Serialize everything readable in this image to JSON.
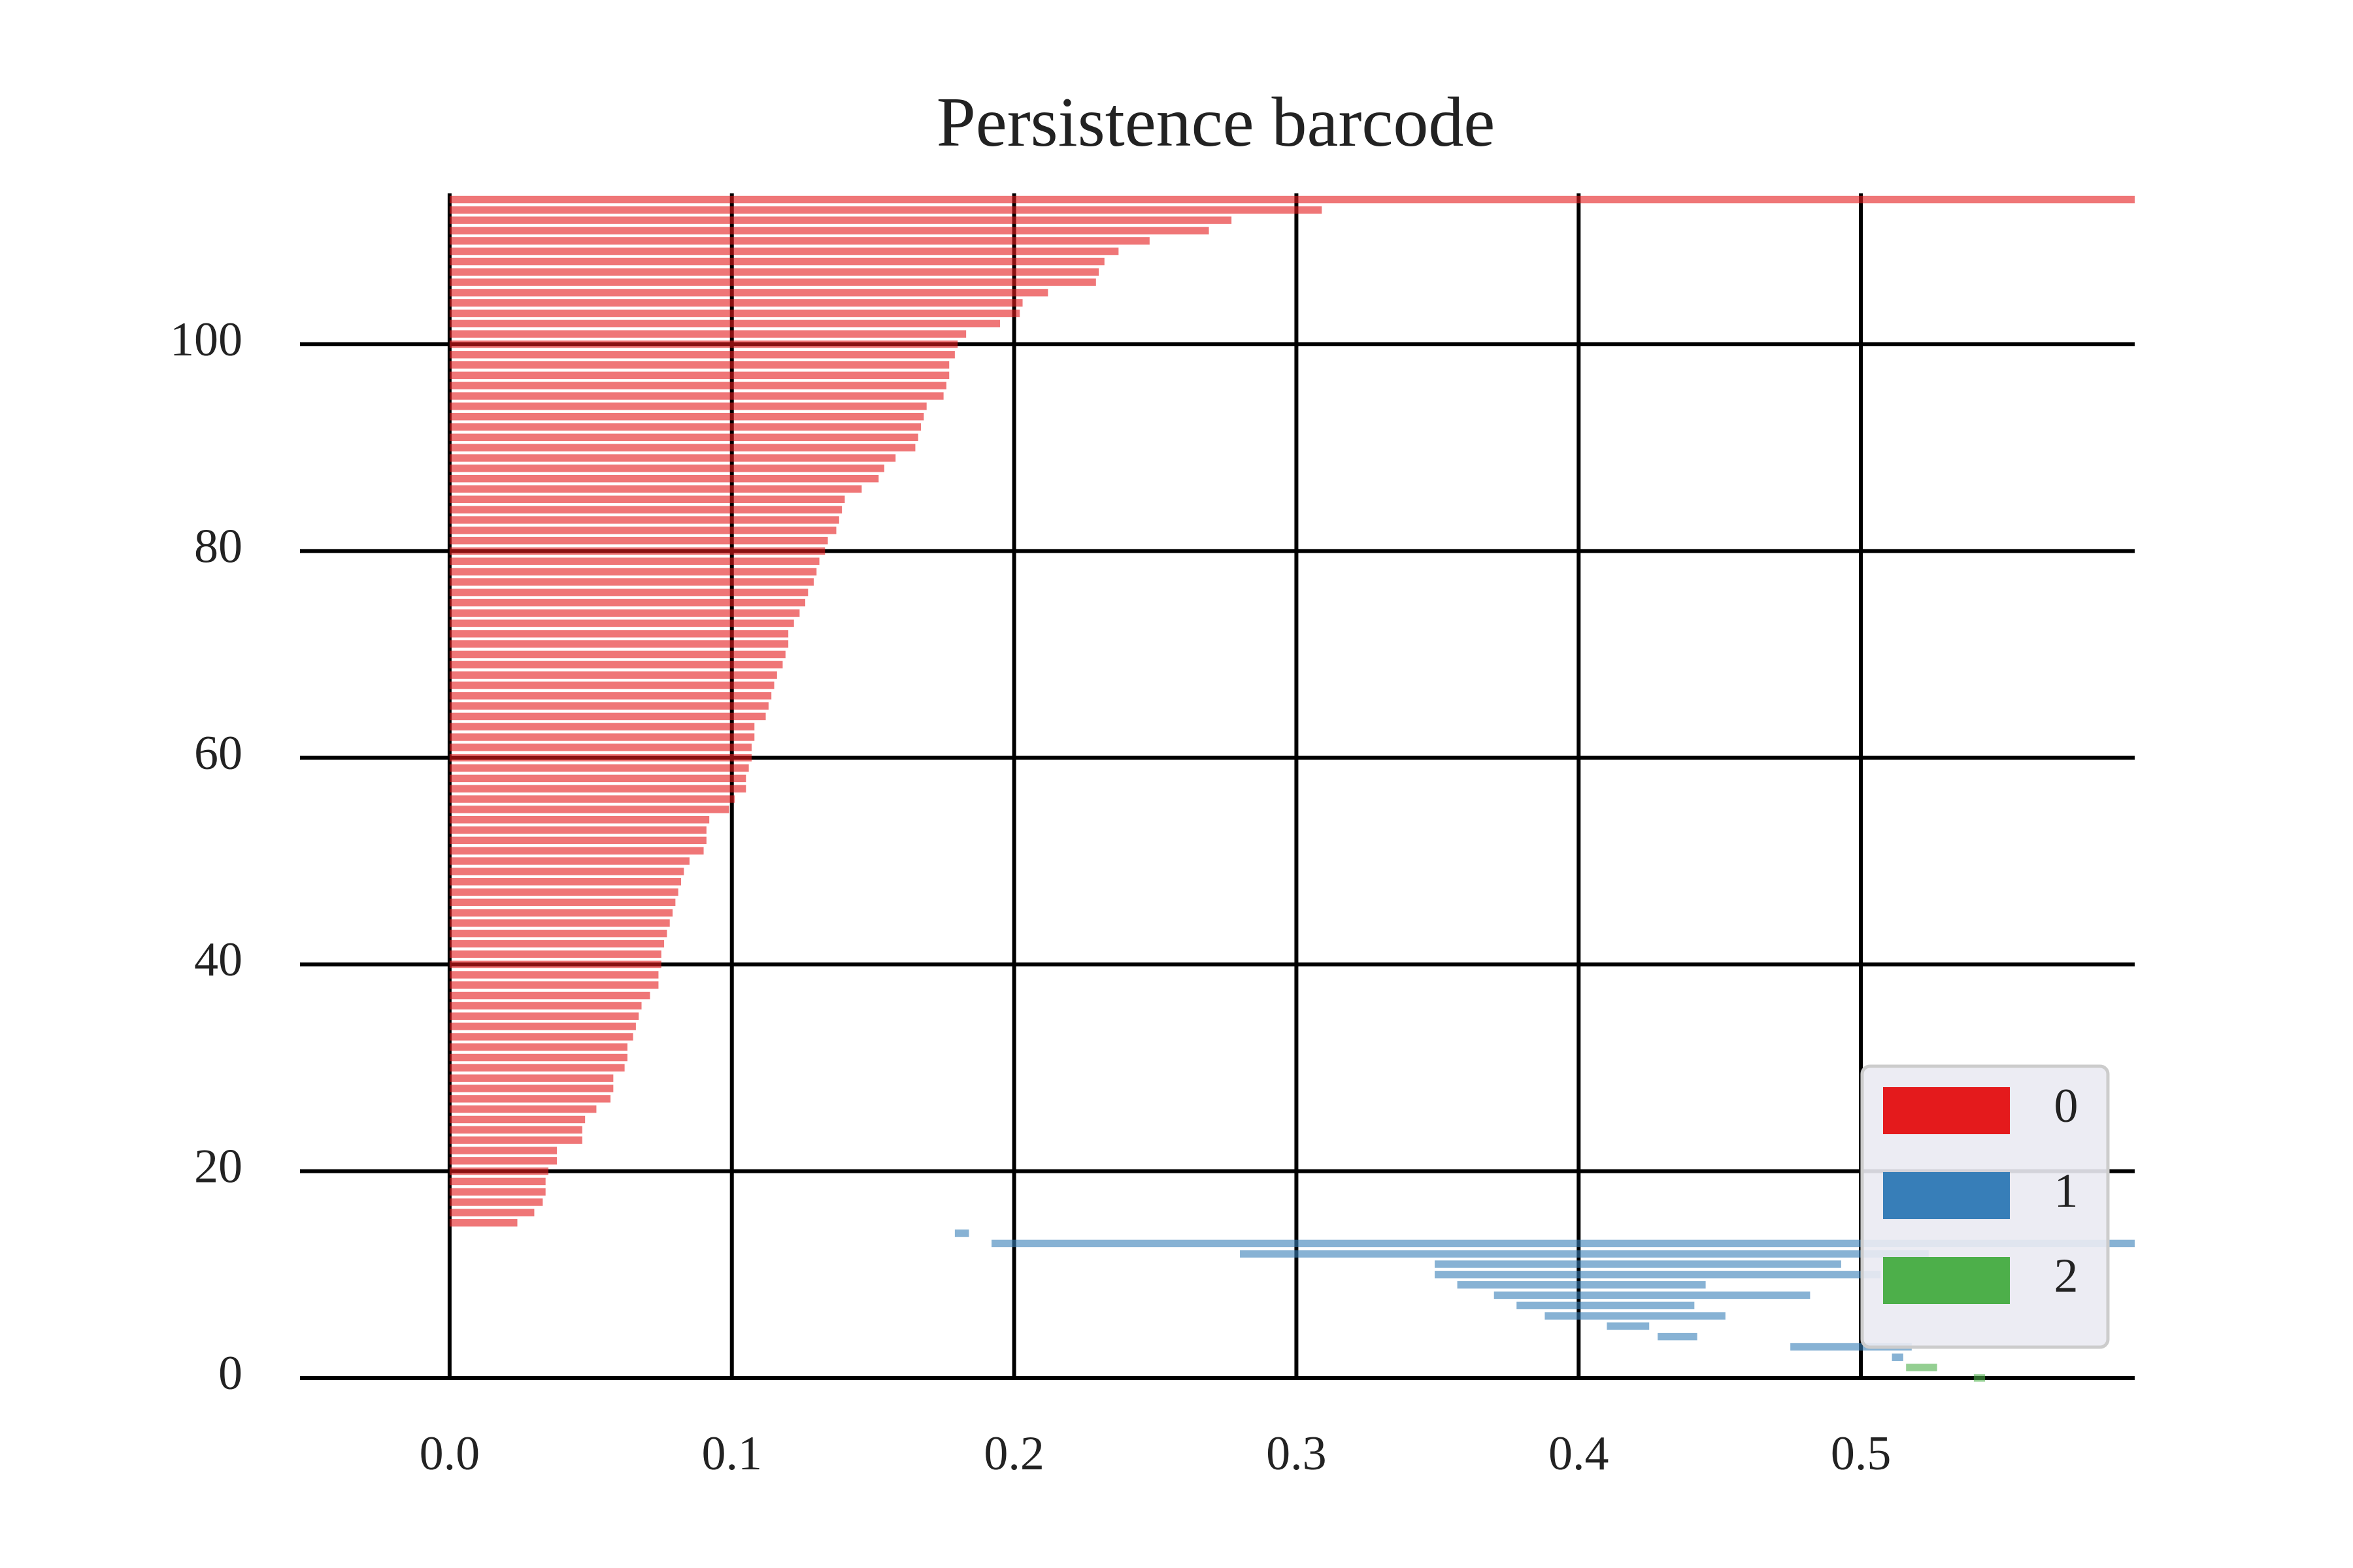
{
  "chart_data": {
    "type": "barcode",
    "title": "Persistence barcode",
    "xlim": [
      -0.053,
      0.597
    ],
    "ylim": [
      0,
      114.6
    ],
    "xticks": [
      {
        "value": 0,
        "label": "0.0"
      },
      0.1,
      0.2,
      0.3,
      0.4,
      0.5
    ],
    "yticks": [
      0,
      20,
      40,
      60,
      80,
      100
    ],
    "grid": true,
    "legend": "lower right",
    "series": [
      {
        "name": "0",
        "color": "#e41a1c",
        "y": [
          114,
          113,
          112,
          111,
          110,
          109,
          108,
          107,
          106,
          105,
          104,
          103,
          102,
          101,
          100,
          99,
          98,
          97,
          96,
          95,
          94,
          93,
          92,
          91,
          90,
          89,
          88,
          87,
          86,
          85,
          84,
          83,
          82,
          81,
          80,
          79,
          78,
          77,
          76,
          75,
          74,
          73,
          72,
          71,
          70,
          69,
          68,
          67,
          66,
          65,
          64,
          63,
          62,
          61,
          60,
          59,
          58,
          57,
          56,
          55,
          54,
          53,
          52,
          51,
          50,
          49,
          48,
          47,
          46,
          45,
          44,
          43,
          42,
          41,
          40,
          39,
          38,
          37,
          36,
          35,
          34,
          33,
          32,
          31,
          30,
          29,
          28,
          27,
          26,
          25,
          24,
          23,
          22,
          21,
          20,
          19,
          18,
          17,
          16,
          15
        ],
        "births": [
          0,
          0,
          0,
          0,
          0,
          0,
          0,
          0,
          0,
          0,
          0,
          0,
          0,
          0,
          0,
          0,
          0,
          0,
          0,
          0,
          0,
          0,
          0,
          0,
          0,
          0,
          0,
          0,
          0,
          0,
          0,
          0,
          0,
          0,
          0,
          0,
          0,
          0,
          0,
          0,
          0,
          0,
          0,
          0,
          0,
          0,
          0,
          0,
          0,
          0,
          0,
          0,
          0,
          0,
          0,
          0,
          0,
          0,
          0,
          0,
          0,
          0,
          0,
          0,
          0,
          0,
          0,
          0,
          0,
          0,
          0,
          0,
          0,
          0,
          0,
          0,
          0,
          0,
          0,
          0,
          0,
          0,
          0,
          0,
          0,
          0,
          0,
          0,
          0,
          0,
          0,
          0,
          0,
          0,
          0,
          0,
          0,
          0,
          0,
          0
        ],
        "deaths": [
          null,
          0.309,
          0.277,
          0.269,
          0.248,
          0.237,
          0.232,
          0.23,
          0.229,
          0.212,
          0.203,
          0.202,
          0.195,
          0.183,
          0.18,
          0.179,
          0.177,
          0.177,
          0.176,
          0.175,
          0.169,
          0.168,
          0.167,
          0.166,
          0.165,
          0.158,
          0.154,
          0.152,
          0.146,
          0.14,
          0.139,
          0.138,
          0.137,
          0.134,
          0.133,
          0.131,
          0.13,
          0.129,
          0.127,
          0.126,
          0.124,
          0.122,
          0.12,
          0.12,
          0.119,
          0.118,
          0.116,
          0.115,
          0.114,
          0.113,
          0.112,
          0.108,
          0.108,
          0.107,
          0.107,
          0.106,
          0.105,
          0.105,
          0.101,
          0.099,
          0.092,
          0.091,
          0.091,
          0.09,
          0.085,
          0.083,
          0.082,
          0.081,
          0.08,
          0.079,
          0.078,
          0.077,
          0.076,
          0.075,
          0.075,
          0.074,
          0.074,
          0.071,
          0.068,
          0.067,
          0.066,
          0.065,
          0.063,
          0.063,
          0.062,
          0.058,
          0.058,
          0.057,
          0.052,
          0.048,
          0.047,
          0.047,
          0.038,
          0.038,
          0.035,
          0.034,
          0.034,
          0.033,
          0.03,
          0.024
        ]
      },
      {
        "name": "1",
        "color": "#377eb8",
        "y": [
          14,
          13,
          12,
          11,
          10,
          9,
          8,
          7,
          6,
          5,
          4,
          3,
          2
        ],
        "births": [
          0.179,
          0.192,
          0.28,
          0.349,
          0.349,
          0.357,
          0.37,
          0.378,
          0.388,
          0.41,
          0.428,
          0.475,
          0.511
        ],
        "deaths": [
          0.184,
          null,
          0.524,
          0.493,
          0.507,
          0.445,
          0.482,
          0.441,
          0.452,
          0.425,
          0.442,
          0.518,
          0.515
        ]
      },
      {
        "name": "2",
        "color": "#4daf4a",
        "y": [
          1,
          0
        ],
        "births": [
          0.516,
          0.54
        ],
        "deaths": [
          0.527,
          0.544
        ]
      }
    ]
  }
}
